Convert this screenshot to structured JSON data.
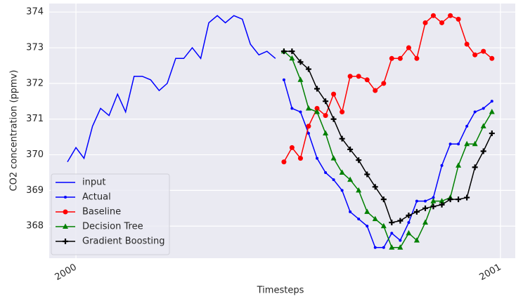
{
  "chart_data": {
    "type": "line",
    "xlabel": "Timesteps",
    "ylabel": "CO2 concentration (ppmv)",
    "xlim": [
      1999.937,
      2001.035
    ],
    "ylim": [
      367.1,
      374.24
    ],
    "xticks": [
      2000,
      2001
    ],
    "yticks": [
      368,
      369,
      370,
      371,
      372,
      373,
      374
    ],
    "grid": true,
    "legend": "lower left",
    "series": [
      {
        "name": "input",
        "color": "#0000ff",
        "marker": "none",
        "x": [
          1999.98,
          2000.0,
          2000.019,
          2000.039,
          2000.058,
          2000.078,
          2000.098,
          2000.117,
          2000.137,
          2000.156,
          2000.176,
          2000.196,
          2000.215,
          2000.235,
          2000.254,
          2000.274,
          2000.294,
          2000.313,
          2000.333,
          2000.352,
          2000.372,
          2000.392,
          2000.411,
          2000.431,
          2000.45,
          2000.47
        ],
        "values": [
          369.8,
          370.2,
          369.9,
          370.8,
          371.3,
          371.1,
          371.7,
          371.2,
          372.2,
          372.2,
          372.1,
          371.8,
          372.0,
          372.7,
          372.7,
          373.0,
          372.7,
          373.7,
          373.9,
          373.7,
          373.9,
          373.8,
          373.1,
          372.8,
          372.9,
          372.7
        ]
      },
      {
        "name": "Actual",
        "color": "#0000ff",
        "marker": "dot",
        "x": [
          2000.49,
          2000.509,
          2000.529,
          2000.548,
          2000.568,
          2000.588,
          2000.607,
          2000.627,
          2000.646,
          2000.666,
          2000.686,
          2000.705,
          2000.725,
          2000.744,
          2000.764,
          2000.784,
          2000.803,
          2000.823,
          2000.842,
          2000.862,
          2000.882,
          2000.901,
          2000.921,
          2000.94,
          2000.96,
          2000.98
        ],
        "values": [
          372.1,
          371.3,
          371.2,
          370.6,
          369.9,
          369.5,
          369.3,
          369.0,
          368.4,
          368.2,
          368.0,
          367.4,
          367.4,
          367.8,
          367.6,
          368.1,
          368.7,
          368.7,
          368.8,
          369.7,
          370.3,
          370.3,
          370.8,
          371.2,
          371.3,
          371.5
        ]
      },
      {
        "name": "Baseline",
        "color": "#ff0000",
        "marker": "circle",
        "x": [
          2000.49,
          2000.509,
          2000.529,
          2000.548,
          2000.568,
          2000.588,
          2000.607,
          2000.627,
          2000.646,
          2000.666,
          2000.686,
          2000.705,
          2000.725,
          2000.744,
          2000.764,
          2000.784,
          2000.803,
          2000.823,
          2000.842,
          2000.862,
          2000.882,
          2000.901,
          2000.921,
          2000.94,
          2000.96,
          2000.98
        ],
        "values": [
          369.8,
          370.2,
          369.9,
          370.8,
          371.3,
          371.1,
          371.7,
          371.2,
          372.2,
          372.2,
          372.1,
          371.8,
          372.0,
          372.7,
          372.7,
          373.0,
          372.7,
          373.7,
          373.9,
          373.7,
          373.9,
          373.8,
          373.1,
          372.8,
          372.9,
          372.7
        ]
      },
      {
        "name": "Decision Tree",
        "color": "#008000",
        "marker": "triangle",
        "x": [
          2000.49,
          2000.509,
          2000.529,
          2000.548,
          2000.568,
          2000.588,
          2000.607,
          2000.627,
          2000.646,
          2000.666,
          2000.686,
          2000.705,
          2000.725,
          2000.744,
          2000.764,
          2000.784,
          2000.803,
          2000.823,
          2000.842,
          2000.862,
          2000.882,
          2000.901,
          2000.921,
          2000.94,
          2000.96,
          2000.98
        ],
        "values": [
          372.9,
          372.7,
          372.1,
          371.3,
          371.2,
          370.6,
          369.9,
          369.5,
          369.3,
          369.0,
          368.4,
          368.2,
          368.0,
          367.4,
          367.4,
          367.8,
          367.6,
          368.1,
          368.7,
          368.7,
          368.8,
          369.7,
          370.3,
          370.3,
          370.8,
          371.2
        ]
      },
      {
        "name": "Gradient Boosting",
        "color": "#000000",
        "marker": "plus",
        "x": [
          2000.49,
          2000.509,
          2000.529,
          2000.548,
          2000.568,
          2000.588,
          2000.607,
          2000.627,
          2000.646,
          2000.666,
          2000.686,
          2000.705,
          2000.725,
          2000.744,
          2000.764,
          2000.784,
          2000.803,
          2000.823,
          2000.842,
          2000.862,
          2000.882,
          2000.901,
          2000.921,
          2000.94,
          2000.96,
          2000.98
        ],
        "values": [
          372.9,
          372.9,
          372.6,
          372.4,
          371.85,
          371.5,
          371.0,
          370.45,
          370.15,
          369.85,
          369.45,
          369.1,
          368.75,
          368.1,
          368.15,
          368.3,
          368.4,
          368.5,
          368.55,
          368.6,
          368.75,
          368.75,
          368.8,
          369.65,
          370.1,
          370.6
        ]
      }
    ]
  }
}
